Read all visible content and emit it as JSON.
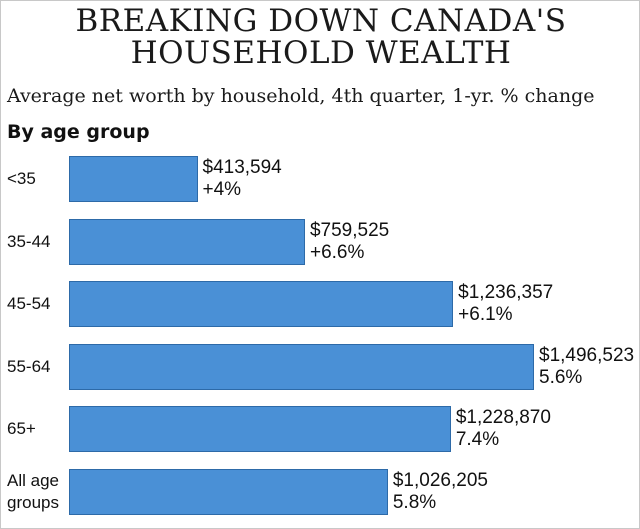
{
  "chart_data": {
    "type": "bar",
    "orientation": "horizontal",
    "title_lines": [
      "BREAKING DOWN CANADA'S",
      "HOUSEHOLD WEALTH"
    ],
    "subtitle": "Average net worth by household, 4th quarter, 1-yr. % change",
    "group_heading": "By age group",
    "categories": [
      "<35",
      "35-44",
      "45-54",
      "55-64",
      "65+",
      "All age groups"
    ],
    "values": [
      413594,
      759525,
      1236357,
      1496523,
      1228870,
      1026205
    ],
    "value_labels": [
      "$413,594",
      "$759,525",
      "$1,236,357",
      "$1,496,523",
      "$1,228,870",
      "$1,026,205"
    ],
    "change_labels": [
      "+4%",
      "+6.6%",
      "+6.1%",
      "5.6%",
      "7.4%",
      "5.8%"
    ],
    "bar_color": "#4a90d6",
    "xlim": [
      0,
      1496523
    ]
  }
}
